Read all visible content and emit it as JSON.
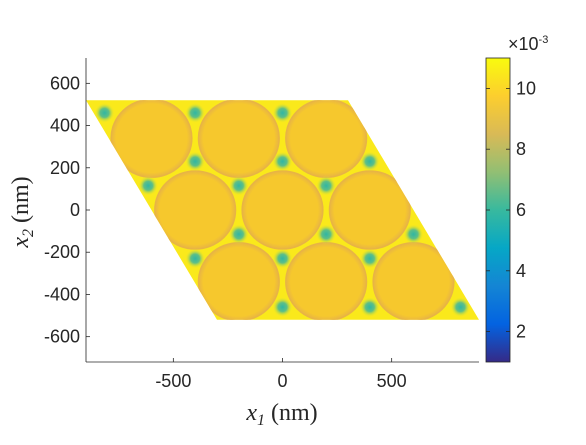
{
  "chart_data": {
    "type": "heatmap",
    "title": "",
    "xlabel": {
      "var": "x",
      "sub": "1",
      "unit": "(nm)"
    },
    "ylabel": {
      "var": "x",
      "sub": "2",
      "unit": "(nm)"
    },
    "xlim": [
      -900,
      900
    ],
    "ylim": [
      -720,
      720
    ],
    "xticks": [
      -500,
      0,
      500
    ],
    "xtick_labels": [
      "-500",
      "0",
      "500"
    ],
    "yticks": [
      600,
      400,
      200,
      0,
      -200,
      -400,
      -600
    ],
    "ytick_labels": [
      "600",
      "400",
      "200",
      "0",
      "-200",
      "-400",
      "-600"
    ],
    "grid": false,
    "domain_parallelogram": [
      [
        -900,
        520
      ],
      [
        300,
        520
      ],
      [
        900,
        -520
      ],
      [
        -300,
        -520
      ]
    ],
    "lattice": {
      "circle_radius": 185,
      "circle_color": "#f6c82d",
      "circle_edge_color": "#e8b445",
      "circle_centers": [
        [
          -600,
          340
        ],
        [
          -200,
          340
        ],
        [
          200,
          340
        ],
        [
          -400,
          0
        ],
        [
          0,
          0
        ],
        [
          400,
          0
        ],
        [
          -200,
          -340
        ],
        [
          200,
          -340
        ],
        [
          600,
          -340
        ]
      ]
    },
    "background_value": 0.0105,
    "hotspot_value": 0.0058,
    "hotspots": [
      [
        -815,
        460
      ],
      [
        -400,
        460
      ],
      [
        0,
        460
      ],
      [
        -400,
        230
      ],
      [
        0,
        230
      ],
      [
        400,
        230
      ],
      [
        -615,
        115
      ],
      [
        -200,
        115
      ],
      [
        200,
        115
      ],
      [
        -200,
        -115
      ],
      [
        200,
        -115
      ],
      [
        600,
        -115
      ],
      [
        -400,
        -230
      ],
      [
        0,
        -230
      ],
      [
        400,
        -230
      ],
      [
        0,
        -460
      ],
      [
        400,
        -460
      ],
      [
        815,
        -460
      ]
    ],
    "colorbar": {
      "range": [
        1,
        11
      ],
      "ticks": [
        2,
        4,
        6,
        8,
        10
      ],
      "tick_labels": [
        "2",
        "4",
        "6",
        "8",
        "10"
      ],
      "exponent": "×10",
      "exponent_power": "-3",
      "colormap": "parula",
      "colors": [
        "#352a87",
        "#0363e1",
        "#1485d4",
        "#06a7c6",
        "#38b99e",
        "#92bf73",
        "#d9ba56",
        "#fcce2e",
        "#f9fb0e"
      ]
    }
  }
}
